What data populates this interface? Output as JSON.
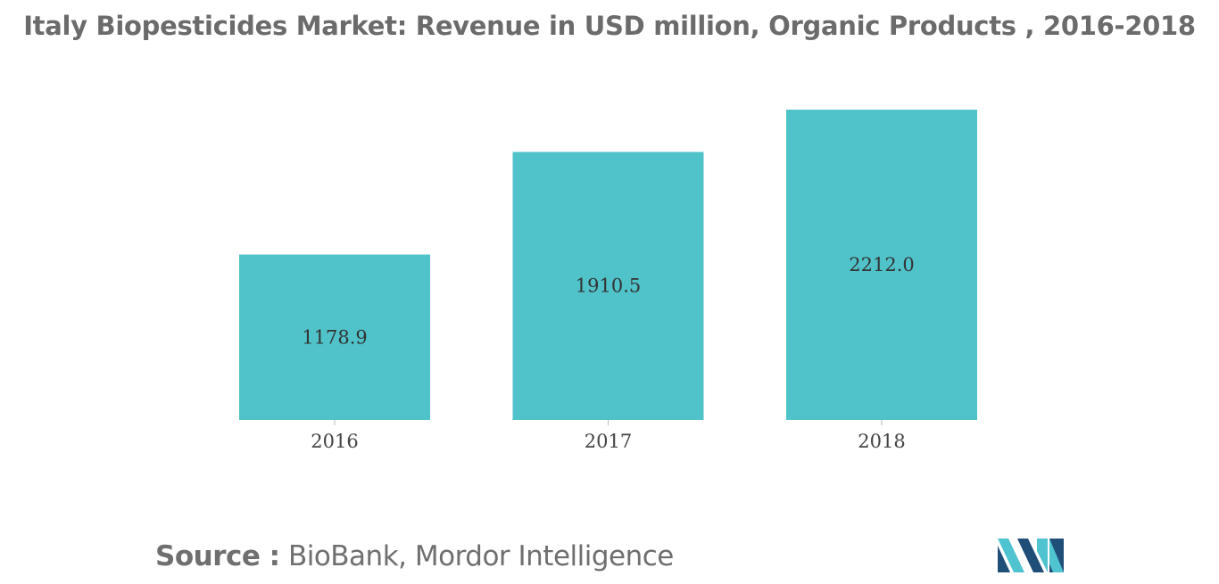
{
  "title": "Italy Biopesticides Market: Revenue in USD million, Organic Products , 2016-2018",
  "source": {
    "label": "Source :",
    "text": "BioBank, Mordor Intelligence"
  },
  "colors": {
    "bar": "#50c3ca",
    "title": "#6b6b6b",
    "axis_text": "#444444",
    "logo_dark": "#1f4e79",
    "logo_light": "#4fc3d0"
  },
  "logo_icon": "mordor-intelligence-logo",
  "chart_data": {
    "type": "bar",
    "title": "Italy Biopesticides Market: Revenue in USD million, Organic Products , 2016-2018",
    "xlabel": "",
    "ylabel": "",
    "categories": [
      "2016",
      "2017",
      "2018"
    ],
    "values": [
      1178.9,
      1910.5,
      2212.0
    ],
    "value_labels": [
      "1178.9",
      "1910.5",
      "2212.0"
    ],
    "ylim": [
      0,
      2212.0
    ],
    "grid": false,
    "legend": "none"
  }
}
